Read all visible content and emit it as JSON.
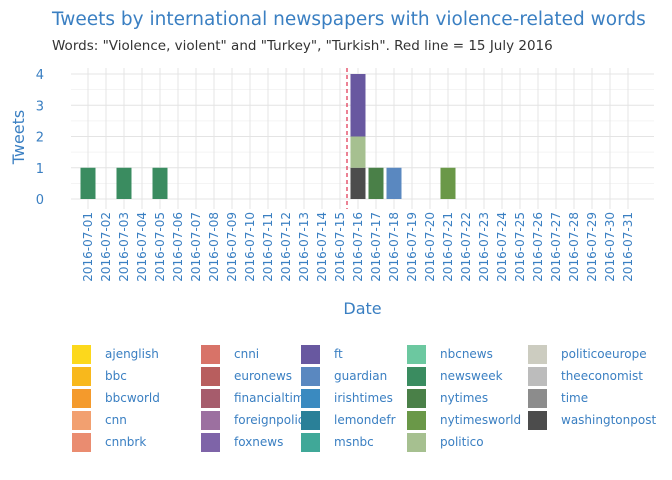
{
  "title": "Tweets by international newspapers with violence-related words",
  "subtitle": "Words: \"Violence, violent\" and \"Turkey\", \"Turkish\". Red line = 15 July 2016",
  "chart_data": {
    "type": "bar",
    "stacked": true,
    "xlabel": "Date",
    "ylabel": "Tweets",
    "ylim": [
      0,
      4
    ],
    "yticks": [
      0,
      1,
      2,
      3,
      4
    ],
    "grid": true,
    "legend_position": "bottom",
    "categories": [
      "2016-07-01",
      "2016-07-02",
      "2016-07-03",
      "2016-07-04",
      "2016-07-05",
      "2016-07-06",
      "2016-07-07",
      "2016-07-08",
      "2016-07-09",
      "2016-07-10",
      "2016-07-11",
      "2016-07-12",
      "2016-07-13",
      "2016-07-14",
      "2016-07-15",
      "2016-07-16",
      "2016-07-17",
      "2016-07-18",
      "2016-07-19",
      "2016-07-20",
      "2016-07-21",
      "2016-07-22",
      "2016-07-23",
      "2016-07-24",
      "2016-07-25",
      "2016-07-26",
      "2016-07-27",
      "2016-07-28",
      "2016-07-29",
      "2016-07-30",
      "2016-07-31"
    ],
    "reference_line": {
      "x": "2016-07-15",
      "color": "#e0304e",
      "style": "dashed"
    },
    "series": [
      {
        "name": "ajenglish",
        "color": "#fcd81c"
      },
      {
        "name": "bbc",
        "color": "#f8b81c"
      },
      {
        "name": "bbcworld",
        "color": "#f49a2c"
      },
      {
        "name": "cnn",
        "color": "#f2a070"
      },
      {
        "name": "cnnbrk",
        "color": "#ea8c70"
      },
      {
        "name": "cnni",
        "color": "#d87368"
      },
      {
        "name": "euronews",
        "color": "#b85e5e"
      },
      {
        "name": "financialtimes",
        "color": "#a65c6c"
      },
      {
        "name": "foreignpolicy",
        "color": "#9c70a0"
      },
      {
        "name": "foxnews",
        "color": "#7e64a8"
      },
      {
        "name": "ft",
        "color": "#6858a0",
        "points": [
          [
            "2016-07-16",
            2
          ]
        ]
      },
      {
        "name": "guardian",
        "color": "#5a88c0",
        "points": [
          [
            "2016-07-18",
            1
          ]
        ]
      },
      {
        "name": "irishtimes",
        "color": "#3a8ac0"
      },
      {
        "name": "lemondefr",
        "color": "#2a8098"
      },
      {
        "name": "msnbc",
        "color": "#40a898"
      },
      {
        "name": "nbcnews",
        "color": "#6cc8a0"
      },
      {
        "name": "newsweek",
        "color": "#3a8c60",
        "points": [
          [
            "2016-07-01",
            1
          ],
          [
            "2016-07-03",
            1
          ],
          [
            "2016-07-05",
            1
          ]
        ]
      },
      {
        "name": "nytimes",
        "color": "#4a8048",
        "points": [
          [
            "2016-07-17",
            1
          ]
        ]
      },
      {
        "name": "nytimesworld",
        "color": "#6a9848",
        "points": [
          [
            "2016-07-21",
            1
          ]
        ]
      },
      {
        "name": "politico",
        "color": "#a6c090",
        "points": [
          [
            "2016-07-16",
            1
          ]
        ]
      },
      {
        "name": "politicoeurope",
        "color": "#ccccc0"
      },
      {
        "name": "theeconomist",
        "color": "#bcbcbc"
      },
      {
        "name": "time",
        "color": "#8c8c8c"
      },
      {
        "name": "washingtonpost",
        "color": "#4c4c4c",
        "points": [
          [
            "2016-07-16",
            1
          ]
        ]
      }
    ]
  },
  "colors": {
    "title": "#3a7fc2",
    "axis_text": "#3a7fc2",
    "grid": "#e4e4e4",
    "subtitle": "#333333"
  }
}
